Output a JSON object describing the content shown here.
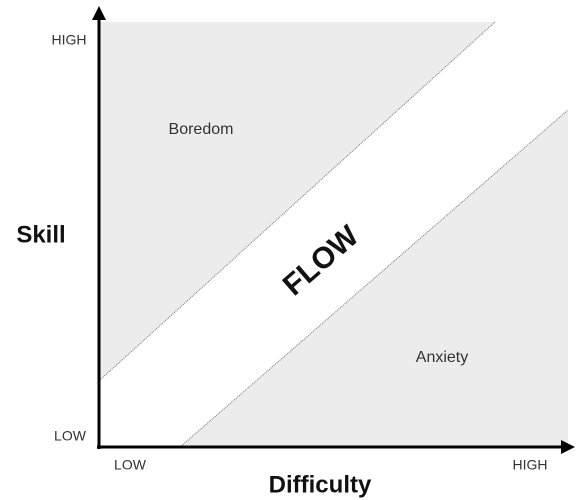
{
  "axes": {
    "y_label": "Skill",
    "y_high": "HIGH",
    "y_low": "LOW",
    "x_label": "Difficulty",
    "x_low": "LOW",
    "x_high": "HIGH"
  },
  "regions": {
    "boredom": "Boredom",
    "flow": "FLOW",
    "anxiety": "Anxiety"
  }
}
